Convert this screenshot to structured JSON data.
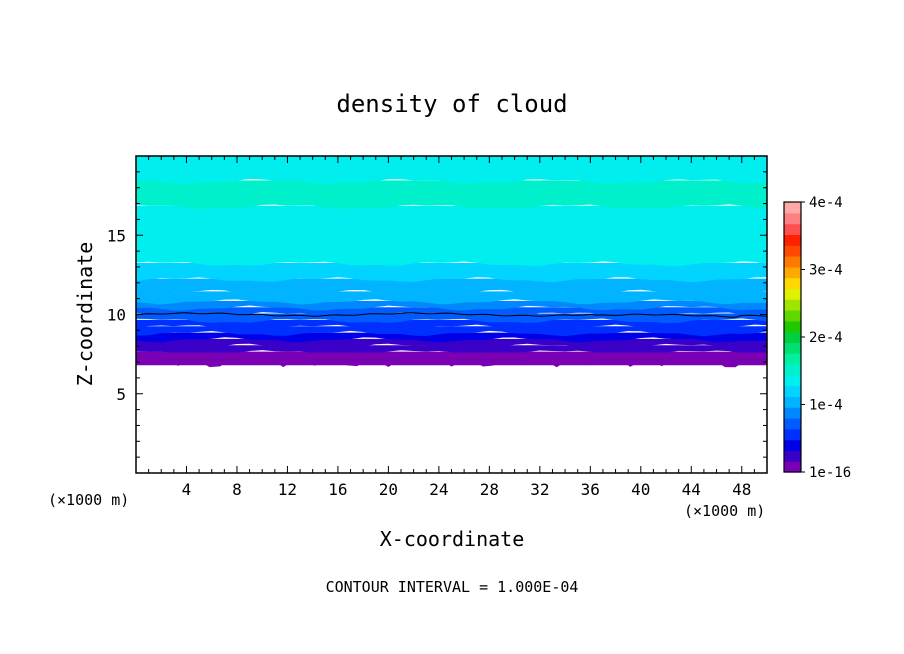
{
  "chart_data": {
    "type": "heatmap",
    "title": "density of cloud",
    "xlabel": "X-coordinate",
    "ylabel": "Z-coordinate",
    "x_unit": "(×1000 m)",
    "z_unit": "(×1000 m)",
    "xlim": [
      0,
      50
    ],
    "ylim": [
      0,
      20
    ],
    "x_ticks": [
      "4",
      "8",
      "12",
      "16",
      "20",
      "24",
      "28",
      "32",
      "36",
      "40",
      "44",
      "48"
    ],
    "y_ticks": [
      "5",
      "10",
      "15"
    ],
    "colorbar": {
      "min": 0,
      "max": 0.0004,
      "tick_labels": [
        "1e-16",
        "1e-4",
        "2e-4",
        "3e-4",
        "4e-4"
      ],
      "colors": [
        "#7a00b4",
        "#3a00c8",
        "#0000e6",
        "#0030ff",
        "#005cff",
        "#0088ff",
        "#00b4ff",
        "#00d4ff",
        "#00eeee",
        "#00f0cc",
        "#00f0a0",
        "#00e070",
        "#00d040",
        "#20c800",
        "#60d800",
        "#a0e400",
        "#e0f000",
        "#ffd800",
        "#ffa800",
        "#ff7800",
        "#ff4800",
        "#ff2000",
        "#ff5050",
        "#ff8080",
        "#ffa8a8"
      ]
    },
    "profile": {
      "z": [
        6.8,
        7.2,
        7.6,
        8.0,
        8.4,
        8.8,
        9.2,
        9.6,
        10.0,
        10.4,
        10.8,
        11.4,
        12.2,
        13.2,
        16.8,
        18.4,
        20.0
      ],
      "density": [
        1e-16,
        8e-06,
        1.8e-05,
        2.8e-05,
        3.8e-05,
        4.8e-05,
        5.8e-05,
        6.8e-05,
        7.8e-05,
        8.8e-05,
        0.0001,
        0.000112,
        0.000124,
        0.000138,
        0.00015,
        0.000138,
        0.000125
      ]
    },
    "cloud_base_z": 7.0,
    "contour_level": 0.0001,
    "contour_line_z": 10.0,
    "footnote": "CONTOUR INTERVAL = 1.000E-04"
  }
}
